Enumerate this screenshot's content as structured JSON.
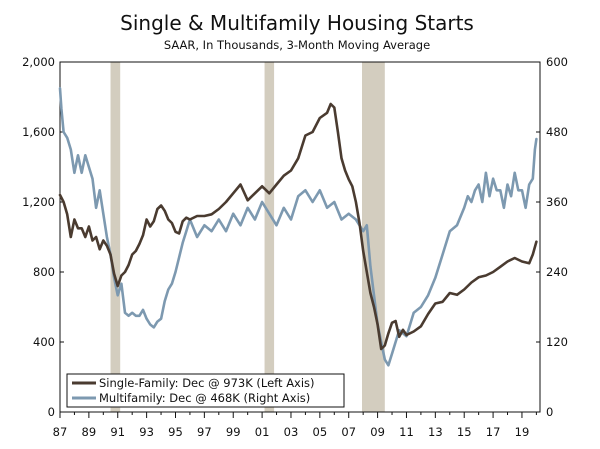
{
  "chart_data": {
    "type": "line",
    "title": "Single & Multifamily Housing Starts",
    "subtitle": "SAAR, In Thousands, 3-Month Moving Average",
    "x_ticks": [
      "87",
      "89",
      "91",
      "93",
      "95",
      "97",
      "99",
      "01",
      "03",
      "05",
      "07",
      "09",
      "11",
      "13",
      "15",
      "17",
      "19"
    ],
    "x_range": [
      1987.0,
      2020.25
    ],
    "left_axis": {
      "label": "Left Axis",
      "range": [
        0,
        2000
      ],
      "ticks": [
        "0",
        "400",
        "800",
        "1,200",
        "1,600",
        "2,000"
      ],
      "tick_values": [
        0,
        400,
        800,
        1200,
        1600,
        2000
      ]
    },
    "right_axis": {
      "label": "Right Axis",
      "range": [
        0,
        600
      ],
      "ticks": [
        "0",
        "120",
        "240",
        "360",
        "480",
        "600"
      ],
      "tick_values": [
        0,
        120,
        240,
        360,
        480,
        600
      ]
    },
    "recessions": [
      [
        1990.5,
        1991.17
      ],
      [
        2001.17,
        2001.83
      ],
      [
        2007.92,
        2009.5
      ]
    ],
    "colors": {
      "single_family": "#4a3b30",
      "multifamily": "#7d99b0",
      "recession": "#d3cdbf",
      "axis": "#111111",
      "legend_border": "#111111"
    },
    "series": [
      {
        "name": "Single-Family",
        "legend": "Single-Family: Dec @ 973K (Left Axis)",
        "axis": "left",
        "x": [
          1987.0,
          1987.25,
          1987.5,
          1987.75,
          1988.0,
          1988.25,
          1988.5,
          1988.75,
          1989.0,
          1989.25,
          1989.5,
          1989.75,
          1990.0,
          1990.25,
          1990.5,
          1990.75,
          1991.0,
          1991.25,
          1991.5,
          1991.75,
          1992.0,
          1992.25,
          1992.5,
          1992.75,
          1993.0,
          1993.25,
          1993.5,
          1993.75,
          1994.0,
          1994.25,
          1994.5,
          1994.75,
          1995.0,
          1995.25,
          1995.5,
          1995.75,
          1996.0,
          1996.5,
          1997.0,
          1997.5,
          1998.0,
          1998.5,
          1999.0,
          1999.5,
          2000.0,
          2000.5,
          2001.0,
          2001.5,
          2002.0,
          2002.5,
          2003.0,
          2003.5,
          2004.0,
          2004.5,
          2005.0,
          2005.5,
          2005.75,
          2006.0,
          2006.25,
          2006.5,
          2006.75,
          2007.0,
          2007.25,
          2007.5,
          2007.75,
          2008.0,
          2008.25,
          2008.5,
          2008.75,
          2009.0,
          2009.25,
          2009.5,
          2009.75,
          2010.0,
          2010.25,
          2010.5,
          2010.75,
          2011.0,
          2011.5,
          2012.0,
          2012.5,
          2013.0,
          2013.5,
          2014.0,
          2014.5,
          2015.0,
          2015.5,
          2016.0,
          2016.5,
          2017.0,
          2017.5,
          2018.0,
          2018.5,
          2019.0,
          2019.5,
          2019.75,
          2020.0
        ],
        "values": [
          1240,
          1200,
          1130,
          1000,
          1100,
          1050,
          1050,
          1000,
          1060,
          980,
          1000,
          930,
          980,
          950,
          900,
          790,
          720,
          780,
          800,
          840,
          900,
          920,
          960,
          1010,
          1100,
          1060,
          1090,
          1160,
          1180,
          1150,
          1100,
          1080,
          1030,
          1020,
          1090,
          1110,
          1100,
          1120,
          1120,
          1130,
          1160,
          1200,
          1250,
          1300,
          1210,
          1250,
          1290,
          1250,
          1300,
          1350,
          1380,
          1450,
          1580,
          1600,
          1680,
          1710,
          1760,
          1740,
          1600,
          1450,
          1380,
          1330,
          1290,
          1200,
          1080,
          920,
          800,
          680,
          600,
          500,
          360,
          380,
          450,
          510,
          520,
          430,
          470,
          440,
          460,
          490,
          560,
          620,
          630,
          680,
          670,
          700,
          740,
          770,
          780,
          800,
          830,
          860,
          880,
          860,
          850,
          900,
          973
        ]
      },
      {
        "name": "Multifamily",
        "legend": "Multifamily: Dec @ 468K (Right Axis)",
        "axis": "right",
        "x": [
          1987.0,
          1987.1,
          1987.25,
          1987.5,
          1987.75,
          1988.0,
          1988.25,
          1988.5,
          1988.75,
          1989.0,
          1989.25,
          1989.5,
          1989.75,
          1990.0,
          1990.25,
          1990.5,
          1990.75,
          1991.0,
          1991.25,
          1991.5,
          1991.75,
          1992.0,
          1992.25,
          1992.5,
          1992.75,
          1993.0,
          1993.25,
          1993.5,
          1993.75,
          1994.0,
          1994.25,
          1994.5,
          1994.75,
          1995.0,
          1995.25,
          1995.5,
          1995.75,
          1996.0,
          1996.5,
          1997.0,
          1997.5,
          1998.0,
          1998.5,
          1999.0,
          1999.5,
          2000.0,
          2000.5,
          2001.0,
          2001.5,
          2002.0,
          2002.5,
          2003.0,
          2003.5,
          2004.0,
          2004.5,
          2005.0,
          2005.5,
          2006.0,
          2006.5,
          2007.0,
          2007.5,
          2008.0,
          2008.25,
          2008.5,
          2008.75,
          2009.0,
          2009.25,
          2009.5,
          2009.75,
          2010.0,
          2010.5,
          2011.0,
          2011.5,
          2012.0,
          2012.5,
          2013.0,
          2013.5,
          2014.0,
          2014.5,
          2015.0,
          2015.25,
          2015.5,
          2015.75,
          2016.0,
          2016.25,
          2016.5,
          2016.75,
          2017.0,
          2017.25,
          2017.5,
          2017.75,
          2018.0,
          2018.25,
          2018.5,
          2018.75,
          2019.0,
          2019.25,
          2019.5,
          2019.75,
          2019.9,
          2020.0
        ],
        "values": [
          555,
          520,
          480,
          470,
          450,
          410,
          440,
          410,
          440,
          420,
          400,
          350,
          380,
          340,
          300,
          270,
          230,
          200,
          220,
          170,
          165,
          170,
          165,
          165,
          175,
          160,
          150,
          145,
          155,
          160,
          190,
          210,
          220,
          240,
          265,
          290,
          310,
          330,
          300,
          320,
          310,
          330,
          310,
          340,
          320,
          350,
          330,
          360,
          340,
          320,
          350,
          330,
          370,
          380,
          360,
          380,
          350,
          360,
          330,
          340,
          330,
          310,
          320,
          250,
          200,
          150,
          120,
          90,
          80,
          100,
          140,
          130,
          170,
          180,
          200,
          230,
          270,
          310,
          320,
          350,
          370,
          360,
          380,
          390,
          360,
          410,
          370,
          400,
          380,
          380,
          350,
          390,
          370,
          410,
          380,
          380,
          350,
          390,
          400,
          450,
          468
        ]
      }
    ]
  }
}
